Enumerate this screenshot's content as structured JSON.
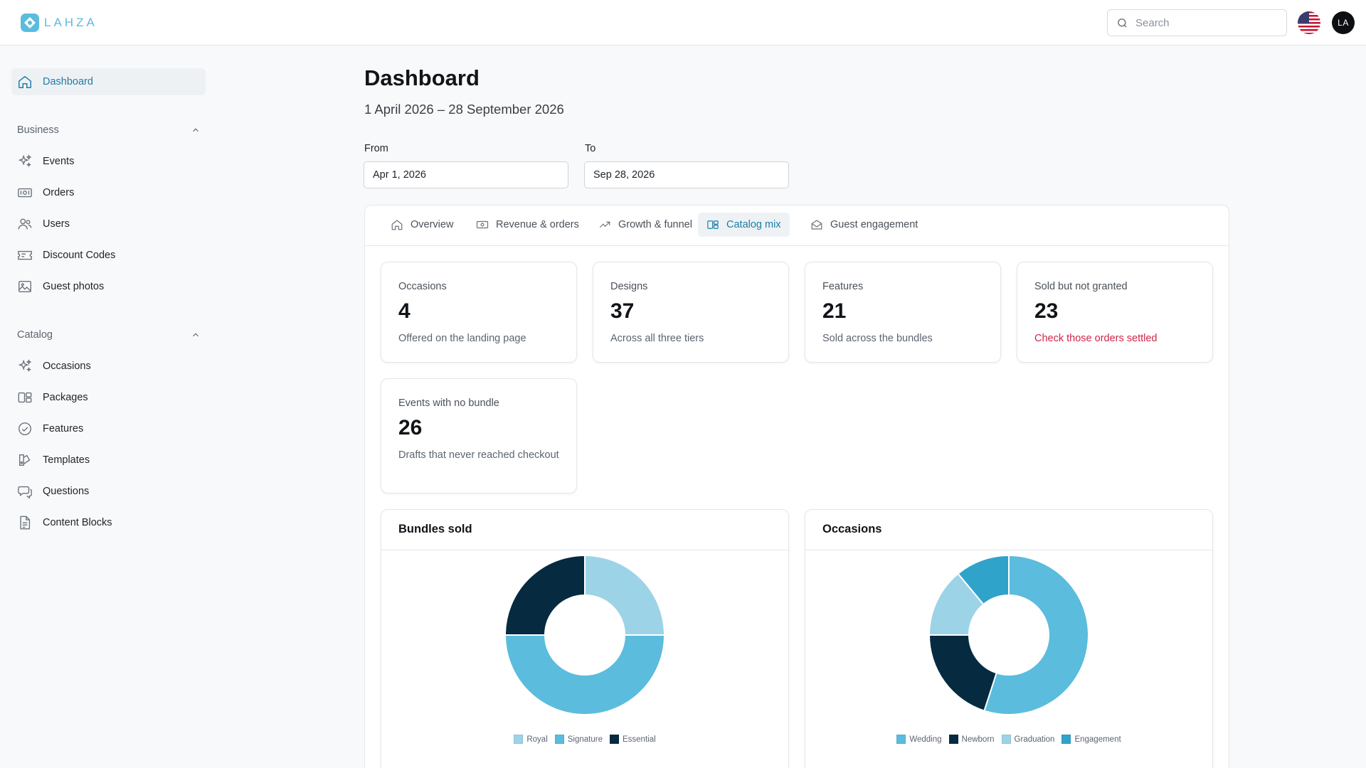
{
  "brand": {
    "name": "LAHZA"
  },
  "header": {
    "search_placeholder": "Search",
    "avatar_initials": "LA"
  },
  "sidebar": {
    "dashboard": "Dashboard",
    "business": {
      "title": "Business",
      "items": [
        "Events",
        "Orders",
        "Users",
        "Discount Codes",
        "Guest photos"
      ]
    },
    "catalog": {
      "title": "Catalog",
      "items": [
        "Occasions",
        "Packages",
        "Features",
        "Templates",
        "Questions",
        "Content Blocks"
      ]
    }
  },
  "main": {
    "title": "Dashboard",
    "range": "1 April 2026 – 28 September 2026",
    "from_label": "From",
    "from_value": "Apr 1, 2026",
    "to_label": "To",
    "to_value": "Sep 28, 2026"
  },
  "tabs": [
    "Overview",
    "Revenue & orders",
    "Growth & funnel",
    "Catalog mix",
    "Guest engagement"
  ],
  "active_tab": "Catalog mix",
  "stats": [
    {
      "label": "Occasions",
      "value": "4",
      "note": "Offered on the landing page"
    },
    {
      "label": "Designs",
      "value": "37",
      "note": "Across all three tiers"
    },
    {
      "label": "Features",
      "value": "21",
      "note": "Sold across the bundles"
    },
    {
      "label": "Sold but not granted",
      "value": "23",
      "note": "Check those orders settled"
    },
    {
      "label": "Events with no bundle",
      "value": "26",
      "note": "Drafts that never reached checkout"
    }
  ],
  "colors": {
    "accent": "#1b7ea6",
    "warning": "#d1244a"
  },
  "chart_data": [
    {
      "type": "pie",
      "title": "Bundles sold",
      "categories": [
        "Royal",
        "Signature",
        "Essential"
      ],
      "values": [
        25,
        50,
        25
      ],
      "colors": [
        "#9dd3e7",
        "#5bbcdd",
        "#062a40"
      ],
      "legend": "bottom"
    },
    {
      "type": "pie",
      "title": "Occasions",
      "categories": [
        "Wedding",
        "Newborn",
        "Graduation",
        "Engagement"
      ],
      "values": [
        55,
        20,
        14,
        11
      ],
      "colors": [
        "#5bbcdd",
        "#062a40",
        "#9dd3e7",
        "#30a3cb"
      ],
      "legend": "bottom"
    }
  ]
}
